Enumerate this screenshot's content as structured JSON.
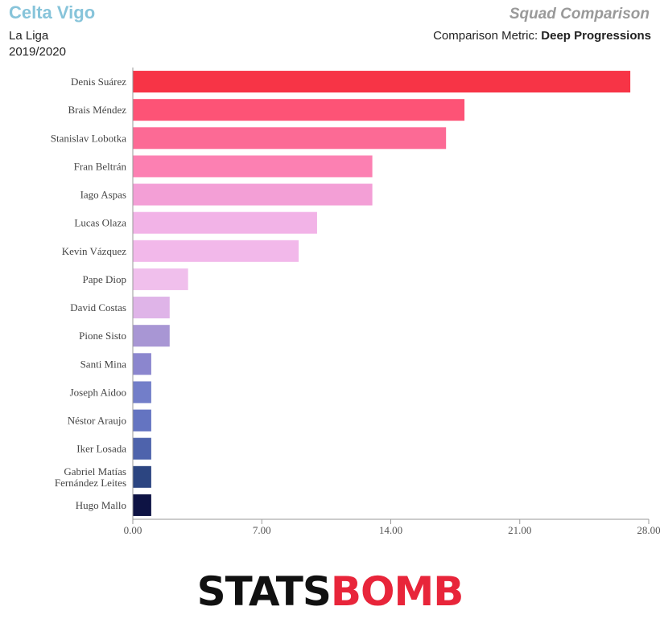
{
  "header": {
    "team": "Celta Vigo",
    "league": "La Liga",
    "season": "2019/2020",
    "report_title": "Squad Comparison",
    "metric_label": "Comparison Metric: ",
    "metric_value": "Deep Progressions"
  },
  "logo": {
    "part_a": "STATS",
    "part_b": "BOMB"
  },
  "chart_data": {
    "type": "bar",
    "orientation": "horizontal",
    "categories": [
      [
        "Denis Suárez"
      ],
      [
        "Brais Méndez"
      ],
      [
        "Stanislav Lobotka"
      ],
      [
        "Fran Beltrán"
      ],
      [
        "Iago Aspas"
      ],
      [
        "Lucas Olaza"
      ],
      [
        "Kevin Vázquez"
      ],
      [
        "Pape Diop"
      ],
      [
        "David Costas"
      ],
      [
        "Pione Sisto"
      ],
      [
        "Santi Mina"
      ],
      [
        "Joseph Aidoo"
      ],
      [
        "Néstor Araujo"
      ],
      [
        "Iker Losada"
      ],
      [
        "Gabriel Matías",
        "Fernández Leites"
      ],
      [
        "Hugo Mallo"
      ]
    ],
    "values": [
      27,
      18,
      17,
      13,
      13,
      10,
      9,
      3,
      2,
      2,
      1,
      1,
      1,
      1,
      1,
      1
    ],
    "colors": [
      "#f73446",
      "#fd5376",
      "#fc6a95",
      "#fc80b2",
      "#f39fd6",
      "#f2b3e7",
      "#f2b8ea",
      "#f0bfec",
      "#dfb4e8",
      "#a896d4",
      "#8b86ce",
      "#727ec9",
      "#6474c1",
      "#4e63ac",
      "#2c4581",
      "#0e1344"
    ],
    "xlim": [
      0,
      28
    ],
    "ticks": [
      "0.00",
      "7.00",
      "14.00",
      "21.00",
      "28.00"
    ],
    "tick_values": [
      0,
      7,
      14,
      21,
      28
    ],
    "grid": false
  }
}
